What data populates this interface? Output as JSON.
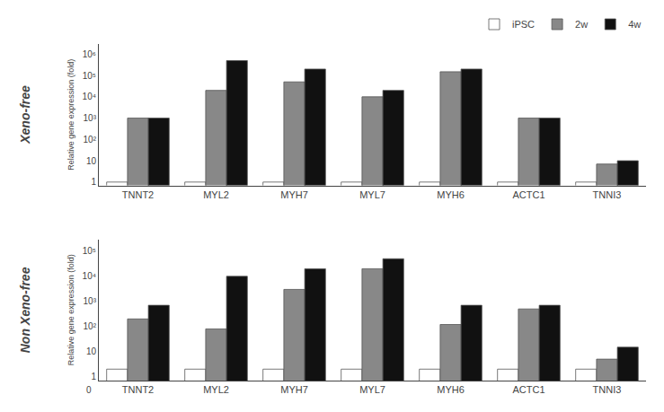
{
  "chart_data": [
    {
      "type": "bar",
      "title": "Xeno-free",
      "ylabel": "Relative gene expression (fold)",
      "categories": [
        "TNNT2",
        "MYL2",
        "MYH7",
        "MYL7",
        "MYH6",
        "ACTC1",
        "TNNI3"
      ],
      "series": [
        {
          "name": "iPSC",
          "color": "#ffffff",
          "values": [
            1,
            1,
            1,
            1,
            1,
            1,
            1
          ]
        },
        {
          "name": "2w",
          "color": "#888888",
          "values": [
            1000,
            20000,
            50000,
            10000,
            150000,
            1000,
            7
          ]
        },
        {
          "name": "4w",
          "color": "#111111",
          "values": [
            1000,
            500000,
            200000,
            20000,
            200000,
            1000,
            10
          ]
        }
      ],
      "ylim": [
        0.7,
        3000000
      ],
      "yticks": [
        1,
        10,
        {
          "value": 100,
          "label": "10²"
        },
        {
          "value": 1000,
          "label": "10³"
        },
        {
          "value": 10000,
          "label": "10⁴"
        },
        {
          "value": 100000,
          "label": "10⁵"
        },
        {
          "value": 1000000,
          "label": "10⁶"
        }
      ],
      "log": "y",
      "grid": false,
      "legend": "upper right"
    },
    {
      "type": "bar",
      "title": "Non Xeno-free",
      "ylabel": "Relative gene expression (fold)",
      "categories": [
        "TNNT2",
        "MYL2",
        "MYH7",
        "MYL7",
        "MYH6",
        "ACTC1",
        "TNNI3"
      ],
      "series": [
        {
          "name": "iPSC",
          "color": "#ffffff",
          "values": [
            2,
            2,
            2,
            2,
            2,
            2,
            2
          ]
        },
        {
          "name": "2w",
          "color": "#888888",
          "values": [
            200,
            80,
            3000,
            20000,
            120,
            500,
            5
          ]
        },
        {
          "name": "4w",
          "color": "#111111",
          "values": [
            700,
            10000,
            20000,
            50000,
            700,
            700,
            15
          ]
        }
      ],
      "ylim": [
        0.7,
        300000
      ],
      "yticks": [
        1,
        10,
        {
          "value": 100,
          "label": "10²"
        },
        {
          "value": 1000,
          "label": "10³"
        },
        {
          "value": 10000,
          "label": "10⁴"
        },
        {
          "value": 100000,
          "label": "10⁵"
        }
      ],
      "log": "y",
      "grid": false,
      "annotations": [
        {
          "text": "0"
        }
      ]
    }
  ]
}
